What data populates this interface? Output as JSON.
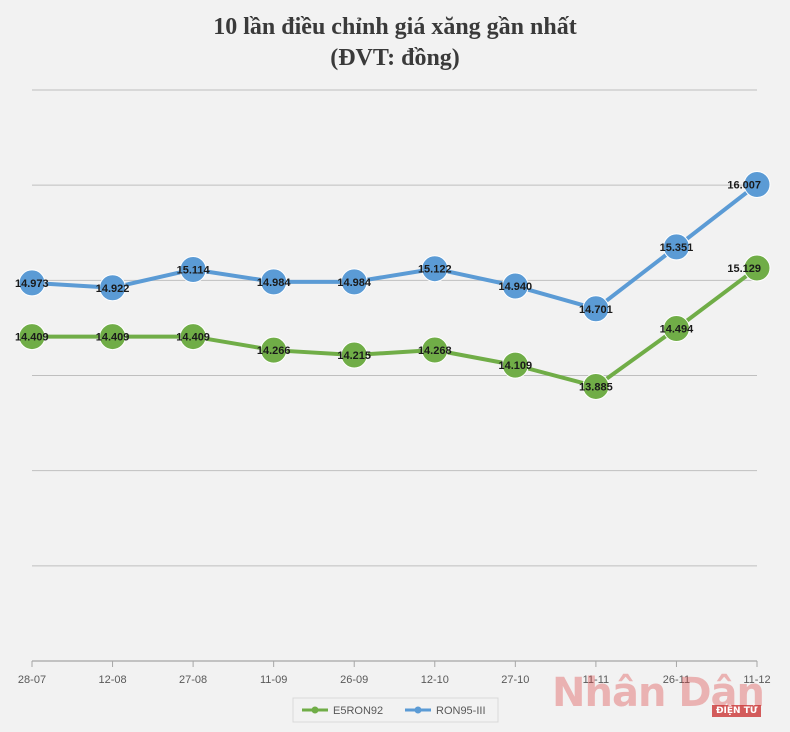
{
  "title_line1": "10 lần điều chỉnh giá xăng gần nhất",
  "title_line2": "(ĐVT: đồng)",
  "watermark": {
    "text": "Nhân Dân",
    "sub": "ĐIỆN TỬ"
  },
  "chart_data": {
    "type": "line",
    "categories": [
      "28-07",
      "12-08",
      "27-08",
      "11-09",
      "26-09",
      "12-10",
      "27-10",
      "11-11",
      "26-11",
      "11-12"
    ],
    "series": [
      {
        "name": "E5RON92",
        "color": "#70ad47",
        "values": [
          14409,
          14409,
          14409,
          14266,
          14215,
          14268,
          14109,
          13885,
          14494,
          15129
        ],
        "labels": [
          "14.409",
          "14.409",
          "14.409",
          "14.266",
          "14.215",
          "14.268",
          "14.109",
          "13.885",
          "14.494",
          "15.129"
        ]
      },
      {
        "name": "RON95-III",
        "color": "#5b9bd5",
        "values": [
          14973,
          14922,
          15114,
          14984,
          14984,
          15122,
          14940,
          14701,
          15351,
          16007
        ],
        "labels": [
          "14.973",
          "14.922",
          "15.114",
          "14.984",
          "14.984",
          "15.122",
          "14.940",
          "14.701",
          "15.351",
          "16.007"
        ]
      }
    ],
    "ylim": [
      11000,
      17000
    ],
    "grid": true,
    "legend_position": "bottom-center"
  }
}
